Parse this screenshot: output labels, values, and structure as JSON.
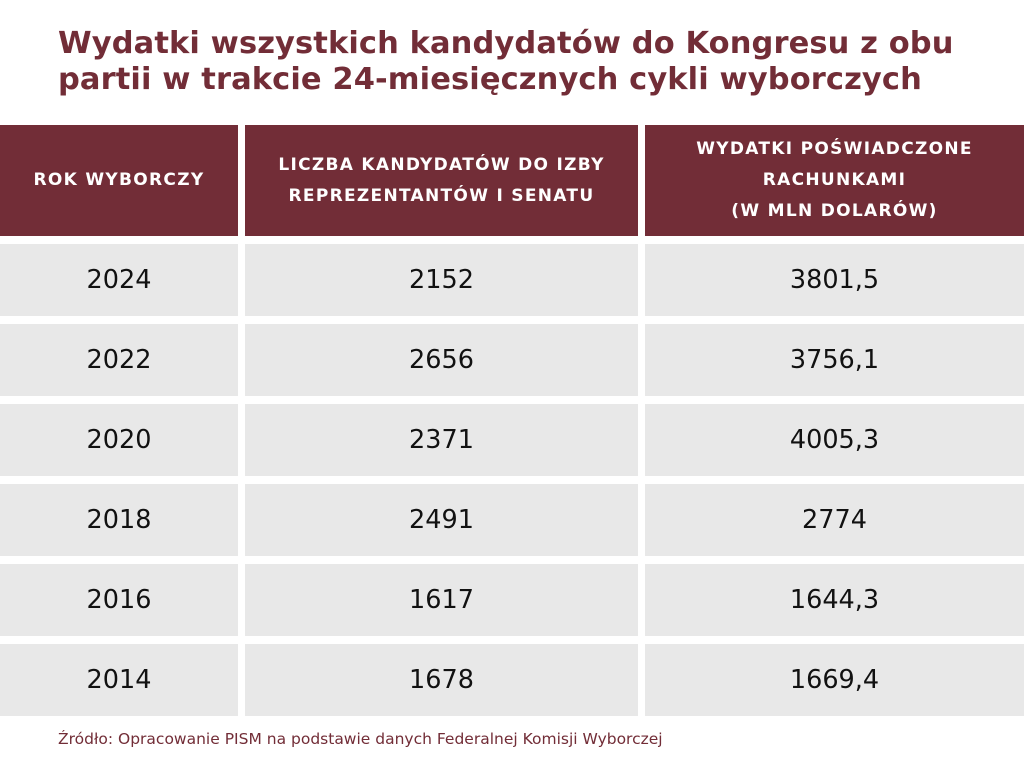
{
  "title": {
    "line1": "Wydatki wszystkich kandydatów do Kongresu z obu",
    "line2": "partii w trakcie 24-miesięcznych cykli wyborczych"
  },
  "columns": [
    {
      "lines": [
        "ROK WYBORCZY"
      ]
    },
    {
      "lines": [
        "LICZBA KANDYDATÓW DO IZBY",
        "REPREZENTANTÓW I SENATU"
      ]
    },
    {
      "lines": [
        "WYDATKI POŚWIADCZONE",
        "RACHUNKAMI",
        "(W MLN DOLARÓW)"
      ]
    }
  ],
  "rows": [
    [
      "2024",
      "2152",
      "3801,5"
    ],
    [
      "2022",
      "2656",
      "3756,1"
    ],
    [
      "2020",
      "2371",
      "4005,3"
    ],
    [
      "2018",
      "2491",
      "2774"
    ],
    [
      "2016",
      "1617",
      "1644,3"
    ],
    [
      "2014",
      "1678",
      "1669,4"
    ]
  ],
  "source": "Źródło: Opracowanie PISM na podstawie danych Federalnej Komisji Wyborczej",
  "colors": {
    "header_background": "#722d37",
    "title_text": "#722d37",
    "cell_background": "#e8e8e8"
  },
  "chart_data": {
    "type": "table",
    "title": "Wydatki wszystkich kandydatów do Kongresu z obu partii w trakcie 24-miesięcznych cykli wyborczych",
    "columns": [
      "ROK WYBORCZY",
      "LICZBA KANDYDATÓW DO IZBY REPREZENTANTÓW I SENATU",
      "WYDATKI POŚWIADCZONE RACHUNKAMI (W MLN DOLARÓW)"
    ],
    "rows": [
      [
        2024,
        2152,
        3801.5
      ],
      [
        2022,
        2656,
        3756.1
      ],
      [
        2020,
        2371,
        4005.3
      ],
      [
        2018,
        2491,
        2774
      ],
      [
        2016,
        1617,
        1644.3
      ],
      [
        2014,
        1678,
        1669.4
      ]
    ],
    "source": "Źródło: Opracowanie PISM na podstawie danych Federalnej Komisji Wyborczej"
  }
}
